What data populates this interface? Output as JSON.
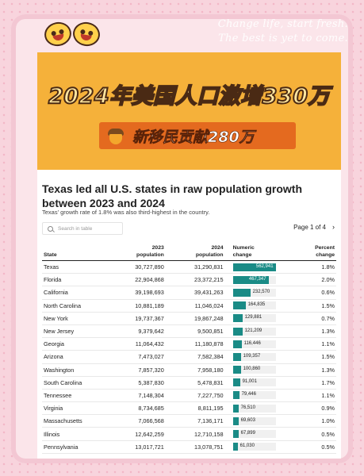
{
  "slogan": {
    "line1": "Change life, start fresh.",
    "line2": "The best is yet to come."
  },
  "banner": {
    "title": "2024年美国人口激增330万",
    "subtitle": "新移民贡献280万"
  },
  "article": {
    "headline": "Texas led all U.S. states in raw population growth between 2023 and 2024",
    "subhead": "Texas' growth rate of 1.8% was also third-highest in the country."
  },
  "search": {
    "placeholder": "Search in table"
  },
  "pager": {
    "label": "Page 1 of 4",
    "next_icon": "›"
  },
  "table": {
    "headers": {
      "state": "State",
      "pop2023_line1": "2023",
      "pop2023_line2": "population",
      "pop2024_line1": "2024",
      "pop2024_line2": "population",
      "change_line1": "Numeric",
      "change_line2": "change",
      "pct_line1": "Percent",
      "pct_line2": "change"
    },
    "bar_color": "#1a8b86",
    "bar_max": 562941,
    "rows": [
      {
        "state": "Texas",
        "pop2023": "30,727,890",
        "pop2024": "31,290,831",
        "change": "562,941",
        "change_value": 562941,
        "pct": "1.8%"
      },
      {
        "state": "Florida",
        "pop2023": "22,904,868",
        "pop2024": "23,372,215",
        "change": "467,347",
        "change_value": 467347,
        "pct": "2.0%"
      },
      {
        "state": "California",
        "pop2023": "39,198,693",
        "pop2024": "39,431,263",
        "change": "232,570",
        "change_value": 232570,
        "pct": "0.6%"
      },
      {
        "state": "North Carolina",
        "pop2023": "10,881,189",
        "pop2024": "11,046,024",
        "change": "164,835",
        "change_value": 164835,
        "pct": "1.5%"
      },
      {
        "state": "New York",
        "pop2023": "19,737,367",
        "pop2024": "19,867,248",
        "change": "129,881",
        "change_value": 129881,
        "pct": "0.7%"
      },
      {
        "state": "New Jersey",
        "pop2023": "9,379,642",
        "pop2024": "9,500,851",
        "change": "121,209",
        "change_value": 121209,
        "pct": "1.3%"
      },
      {
        "state": "Georgia",
        "pop2023": "11,064,432",
        "pop2024": "11,180,878",
        "change": "116,446",
        "change_value": 116446,
        "pct": "1.1%"
      },
      {
        "state": "Arizona",
        "pop2023": "7,473,027",
        "pop2024": "7,582,384",
        "change": "109,357",
        "change_value": 109357,
        "pct": "1.5%"
      },
      {
        "state": "Washington",
        "pop2023": "7,857,320",
        "pop2024": "7,958,180",
        "change": "100,860",
        "change_value": 100860,
        "pct": "1.3%"
      },
      {
        "state": "South Carolina",
        "pop2023": "5,387,830",
        "pop2024": "5,478,831",
        "change": "91,001",
        "change_value": 91001,
        "pct": "1.7%"
      },
      {
        "state": "Tennessee",
        "pop2023": "7,148,304",
        "pop2024": "7,227,750",
        "change": "79,446",
        "change_value": 79446,
        "pct": "1.1%"
      },
      {
        "state": "Virginia",
        "pop2023": "8,734,685",
        "pop2024": "8,811,195",
        "change": "76,510",
        "change_value": 76510,
        "pct": "0.9%"
      },
      {
        "state": "Massachusetts",
        "pop2023": "7,066,568",
        "pop2024": "7,136,171",
        "change": "69,603",
        "change_value": 69603,
        "pct": "1.0%"
      },
      {
        "state": "Illinois",
        "pop2023": "12,642,259",
        "pop2024": "12,710,158",
        "change": "67,899",
        "change_value": 67899,
        "pct": "0.5%"
      },
      {
        "state": "Pennsylvania",
        "pop2023": "13,017,721",
        "pop2024": "13,078,751",
        "change": "61,030",
        "change_value": 61030,
        "pct": "0.5%"
      }
    ]
  },
  "colors": {
    "banner_bg": "#f5b13a",
    "banner_sub_bg": "#e46a1f",
    "page_bg": "#f8d4dd"
  }
}
